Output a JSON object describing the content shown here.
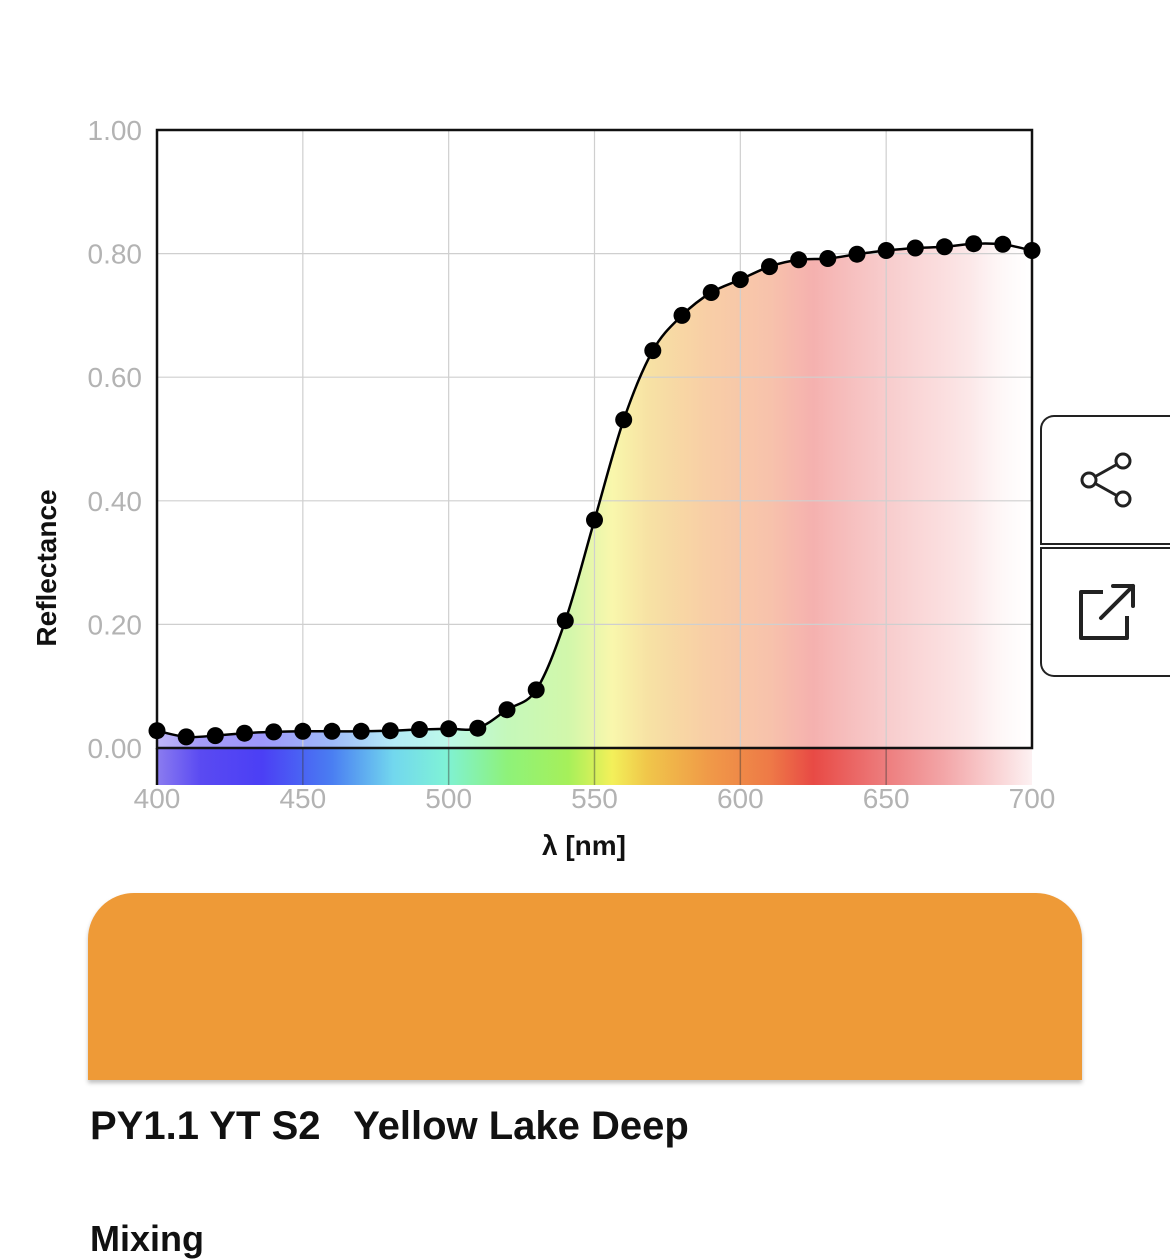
{
  "chart_data": {
    "type": "line",
    "title": "",
    "xlabel": "λ [nm]",
    "ylabel": "Reflectance",
    "xlim": [
      400,
      700
    ],
    "ylim": [
      0,
      1
    ],
    "x_ticks": [
      "400",
      "450",
      "500",
      "550",
      "600",
      "650",
      "700"
    ],
    "y_ticks": [
      "0.00",
      "0.20",
      "0.40",
      "0.60",
      "0.80",
      "1.00"
    ],
    "grid": true,
    "legend": "none",
    "spectrum_band": true,
    "series": [
      {
        "x": [
          400,
          410,
          420,
          430,
          440,
          450,
          460,
          470,
          480,
          490,
          500,
          510,
          520,
          530,
          540,
          550,
          560,
          570,
          580,
          590,
          600,
          610,
          620,
          630,
          640,
          650,
          660,
          670,
          680,
          690,
          700
        ],
        "y": [
          0.028,
          0.018,
          0.02,
          0.024,
          0.026,
          0.027,
          0.027,
          0.027,
          0.028,
          0.03,
          0.031,
          0.032,
          0.062,
          0.094,
          0.206,
          0.369,
          0.531,
          0.643,
          0.7,
          0.737,
          0.758,
          0.779,
          0.79,
          0.792,
          0.799,
          0.805,
          0.809,
          0.811,
          0.816,
          0.815,
          0.805
        ]
      }
    ]
  },
  "colors": {
    "swatch": "#ee9a37",
    "curve": "#000000",
    "points": "#000000"
  },
  "actions": {
    "share_icon": "share-icon",
    "open_icon": "external-link-icon"
  },
  "pigment": {
    "title": "PY1.1 YT S2   Yellow Lake Deep"
  },
  "next_section": {
    "heading": "Mixing"
  }
}
